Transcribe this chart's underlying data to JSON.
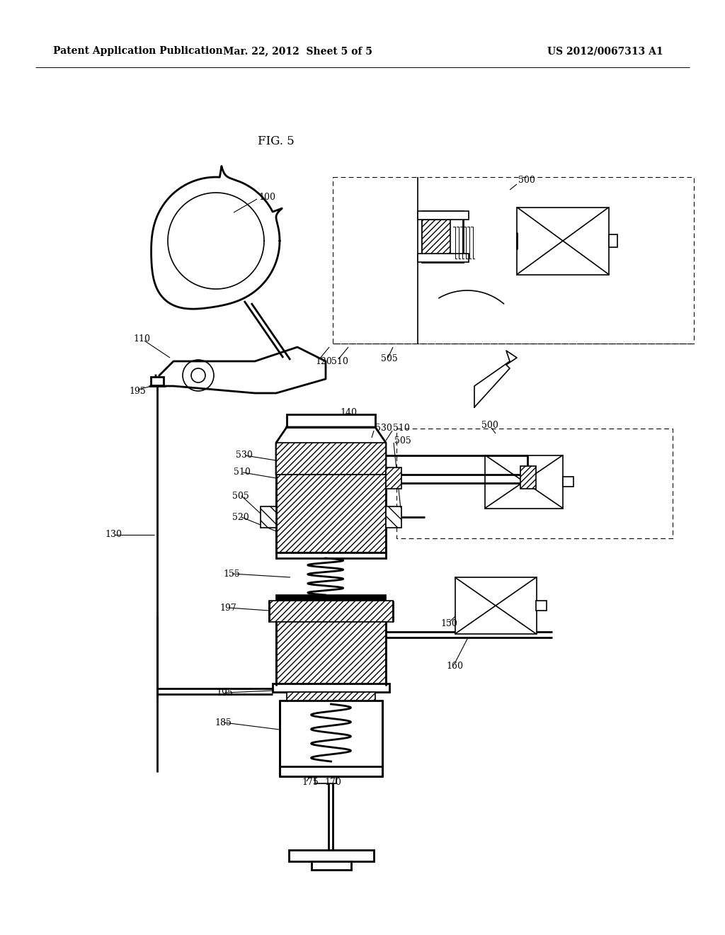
{
  "bg_color": "#ffffff",
  "header_left": "Patent Application Publication",
  "header_center": "Mar. 22, 2012  Sheet 5 of 5",
  "header_right": "US 2012/0067313 A1",
  "fig_label": "FIG. 5"
}
